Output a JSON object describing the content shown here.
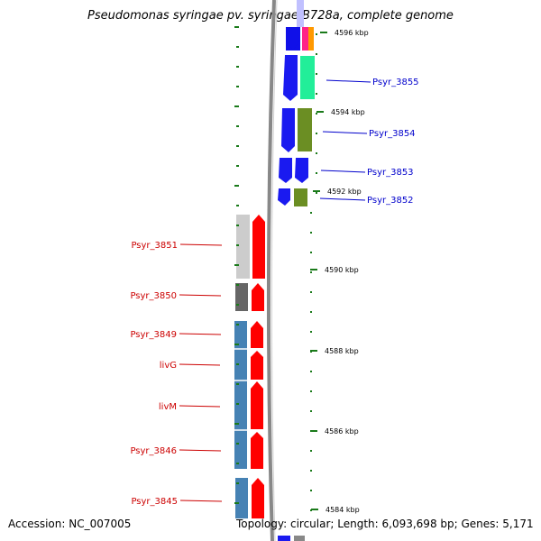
{
  "title": "Pseudomonas syringae pv. syringae B728a, complete genome",
  "footer": {
    "accession": "Accession: NC_007005",
    "summary": "Topology: circular; Length: 6,093,698 bp; Genes: 5,171"
  },
  "scale_labels": [
    "4596 kbp",
    "4594 kbp",
    "4592 kbp",
    "4590 kbp",
    "4588 kbp",
    "4586 kbp",
    "4584 kbp"
  ],
  "gene_labels_right": [
    "Psyr_3855",
    "Psyr_3854",
    "Psyr_3853",
    "Psyr_3852"
  ],
  "gene_labels_left": [
    "Psyr_3851",
    "Psyr_3850",
    "Psyr_3849",
    "livG",
    "livM",
    "Psyr_3846",
    "Psyr_3845"
  ],
  "colors": {
    "right_label": "#0000cc",
    "left_label": "#cc0000",
    "cds_forward": "#ff0000",
    "cds_reverse": "#0000ff",
    "tick": "#1a7a1a",
    "backbone": "#888888"
  }
}
